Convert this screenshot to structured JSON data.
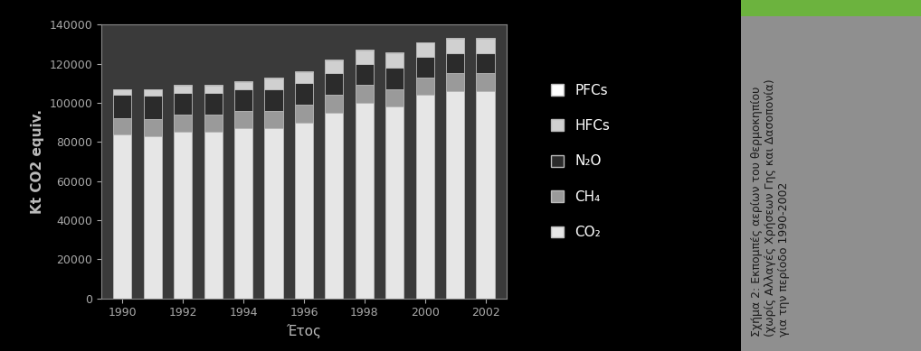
{
  "chart_data": {
    "type": "bar",
    "stacked": true,
    "x_label": "Έτος",
    "y_label": "Kt CO2 equiv.",
    "annotations": [
      "Σχήμα 2: Εκπομπές αερίων του θερμοκηπίου\n(χωρίς Αλλαγές Χρήσεων Γης και Δασοπονία)\nγια την περίοδο 1990-2002"
    ],
    "x": [
      1990,
      1991,
      1992,
      1993,
      1994,
      1995,
      1996,
      1997,
      1998,
      1999,
      2000,
      2001,
      2002
    ],
    "xlim": [
      1989.3,
      2002.7
    ],
    "xticks": [
      1990,
      1992,
      1994,
      1996,
      1998,
      2000,
      2002
    ],
    "ylim": [
      0,
      140000
    ],
    "yticks": [
      0,
      20000,
      40000,
      60000,
      80000,
      100000,
      120000,
      140000
    ],
    "grid": false,
    "legend": "right",
    "series": [
      {
        "name": "CO₂",
        "color": "#e6e6e6",
        "values": [
          84000,
          83000,
          85000,
          85000,
          87000,
          87000,
          90000,
          95000,
          100000,
          98000,
          104000,
          106000,
          106000
        ]
      },
      {
        "name": "CH₄",
        "color": "#9a9a9a",
        "values": [
          8000,
          8500,
          9000,
          9000,
          9000,
          9000,
          9000,
          9000,
          9000,
          9000,
          9000,
          9000,
          9000
        ]
      },
      {
        "name": "N₂O",
        "color": "#2b2b2b",
        "values": [
          12000,
          12000,
          11000,
          11000,
          11000,
          11000,
          11000,
          11000,
          11000,
          11000,
          10500,
          10500,
          10500
        ]
      },
      {
        "name": "HFCs",
        "color": "#d0d0d0",
        "values": [
          2700,
          3200,
          3700,
          3800,
          3800,
          5500,
          5700,
          6800,
          6800,
          7500,
          7200,
          7300,
          7300
        ]
      },
      {
        "name": "PFCs",
        "color": "#ffffff",
        "values": [
          300,
          300,
          300,
          200,
          200,
          500,
          300,
          200,
          200,
          500,
          300,
          200,
          200
        ]
      }
    ]
  }
}
